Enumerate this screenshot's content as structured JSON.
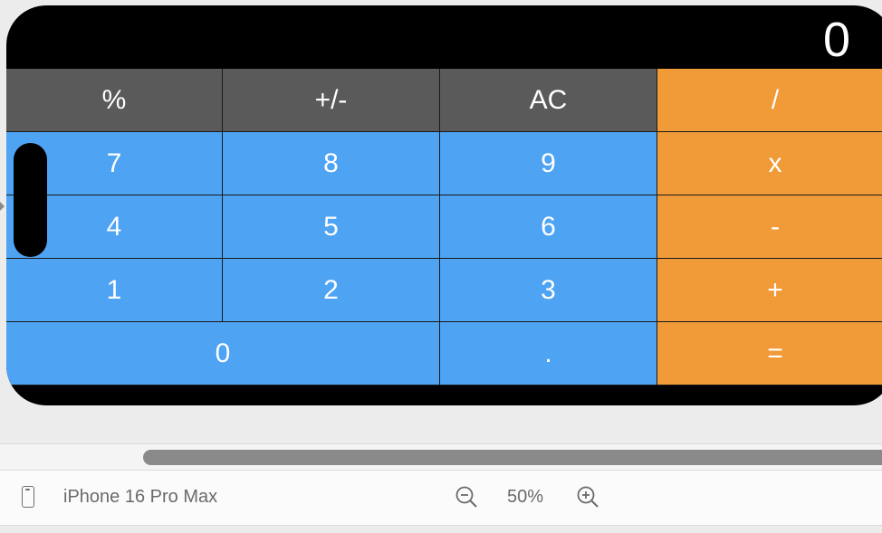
{
  "display": {
    "value": "0"
  },
  "keys": {
    "row1": [
      "%",
      "+/-",
      "AC",
      "/"
    ],
    "row2": [
      "7",
      "8",
      "9",
      "x"
    ],
    "row3": [
      "4",
      "5",
      "6",
      "-"
    ],
    "row4": [
      "1",
      "2",
      "3",
      "+"
    ],
    "row5": [
      "0",
      ".",
      "="
    ]
  },
  "colors": {
    "function": "#5a5a5a",
    "number": "#4ea3f3",
    "operator": "#f09a38",
    "background": "#000000"
  },
  "toolbar": {
    "device_name": "iPhone 16 Pro Max",
    "zoom_level": "50%"
  },
  "icons": {
    "device": "phone-icon",
    "zoom_out": "zoom-out-icon",
    "zoom_in": "zoom-in-icon"
  }
}
